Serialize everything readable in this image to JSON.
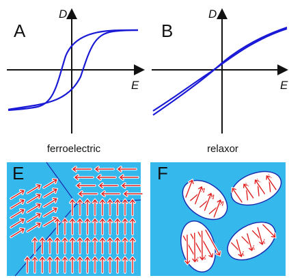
{
  "panels": [
    {
      "label": "A",
      "y_axis": "D",
      "x_axis": "E",
      "caption": "ferroelectric"
    },
    {
      "label": "B",
      "y_axis": "D",
      "x_axis": "E",
      "caption": "relaxor"
    },
    {
      "label": "E"
    },
    {
      "label": "F"
    }
  ]
}
